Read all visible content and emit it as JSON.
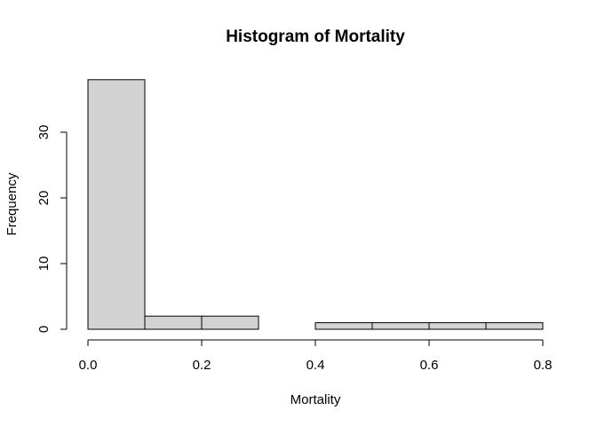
{
  "chart_data": {
    "type": "bar",
    "title": "Histogram of Mortality",
    "xlabel": "Mortality",
    "ylabel": "Frequency",
    "bin_edges": [
      0.0,
      0.1,
      0.2,
      0.3,
      0.4,
      0.5,
      0.6,
      0.7,
      0.8
    ],
    "values": [
      38,
      2,
      2,
      0,
      1,
      1,
      1,
      1
    ],
    "xlim": [
      0.0,
      0.8
    ],
    "ylim": [
      0,
      38
    ],
    "x_ticks": [
      0.0,
      0.2,
      0.4,
      0.6,
      0.8
    ],
    "x_tick_labels": [
      "0.0",
      "0.2",
      "0.4",
      "0.6",
      "0.8"
    ],
    "y_ticks": [
      0,
      10,
      20,
      30
    ],
    "y_tick_labels": [
      "0",
      "10",
      "20",
      "30"
    ],
    "grid": false,
    "colors": {
      "bar_fill": "#d3d3d3",
      "bar_stroke": "#000000"
    }
  }
}
